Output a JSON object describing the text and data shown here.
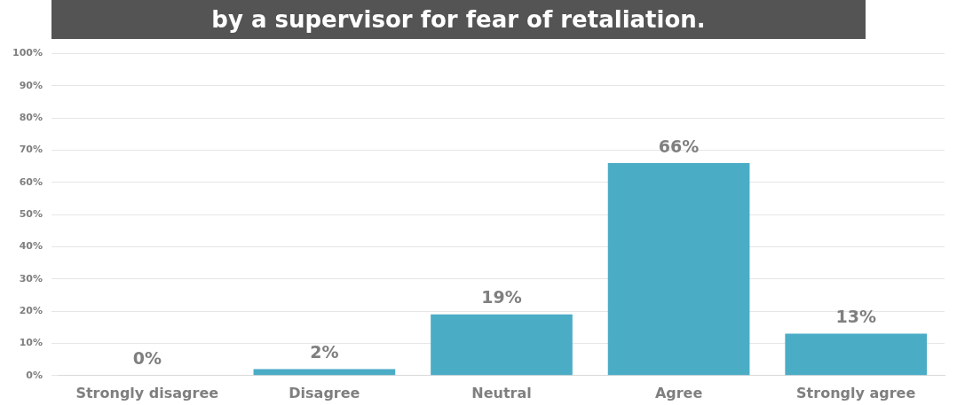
{
  "chart_data": {
    "type": "bar",
    "title": "by a supervisor for fear of retaliation.",
    "categories": [
      "Strongly disagree",
      "Disagree",
      "Neutral",
      "Agree",
      "Strongly agree"
    ],
    "values": [
      0,
      2,
      19,
      66,
      13
    ],
    "value_labels": [
      "0%",
      "2%",
      "19%",
      "66%",
      "13%"
    ],
    "color": "#4bacc6",
    "ylim": [
      0,
      100
    ],
    "yticks": [
      {
        "value": 0,
        "label": "0%"
      },
      {
        "value": 10,
        "label": "10%"
      },
      {
        "value": 20,
        "label": "20%"
      },
      {
        "value": 30,
        "label": "30%"
      },
      {
        "value": 40,
        "label": "40%"
      },
      {
        "value": 50,
        "label": "50%"
      },
      {
        "value": 60,
        "label": "60%"
      },
      {
        "value": 70,
        "label": "70%"
      },
      {
        "value": 80,
        "label": "80%"
      },
      {
        "value": 90,
        "label": "90%"
      },
      {
        "value": 100,
        "label": "100%"
      }
    ],
    "grid": "y",
    "legend": false
  }
}
